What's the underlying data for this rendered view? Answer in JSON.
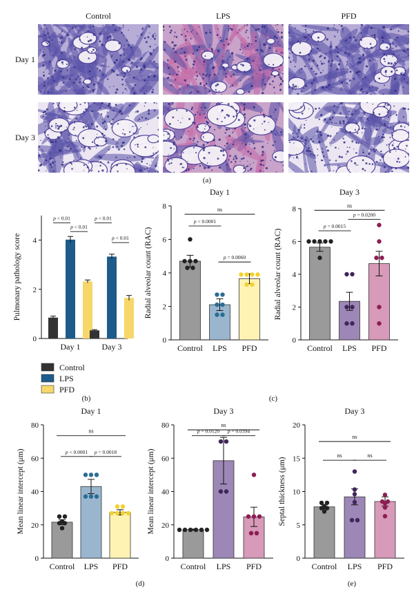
{
  "histology": {
    "columns": [
      "Control",
      "LPS",
      "PFD"
    ],
    "rows": [
      "Day 1",
      "Day 3"
    ],
    "panel_label": "(a)"
  },
  "panel_labels": {
    "b": "(b)",
    "c": "(c)",
    "d": "(d)",
    "e": "(e)"
  },
  "colors": {
    "bar_b_control": "#333333",
    "bar_b_lps": "#1c5b8a",
    "bar_b_pfd": "#f7d66a",
    "control_fill": "#9a9a9a",
    "lps_fill_d1": "#9ab6cf",
    "pfd_fill_d1": "#fff3b3",
    "lps_fill_d3": "#9d87b6",
    "pfd_fill_d3": "#d79ab8",
    "pt_control": "#222222",
    "pt_lps_d1": "#2a6d94",
    "pt_pfd_d1": "#f2d230",
    "pt_lps_d3": "#40265c",
    "pt_pfd_d3": "#8c1d52"
  },
  "chart_data": [
    {
      "id": "b",
      "type": "bar",
      "categories": [
        "Day 1",
        "Day 3"
      ],
      "series": [
        {
          "name": "Control",
          "values": [
            0.85,
            0.33
          ],
          "errors": [
            0.06,
            0.03
          ]
        },
        {
          "name": "LPS",
          "values": [
            4.02,
            3.33
          ],
          "errors": [
            0.13,
            0.1
          ]
        },
        {
          "name": "PFD",
          "values": [
            2.32,
            1.65
          ],
          "errors": [
            0.06,
            0.1
          ]
        }
      ],
      "ylabel": "Pulmonary pathology score",
      "ylim": [
        0,
        5
      ],
      "yticks": [
        0,
        2,
        4
      ],
      "annotations": [
        {
          "text": "p < 0.01",
          "category": "Day 1",
          "from": "Control",
          "to": "LPS",
          "level": 4.7
        },
        {
          "text": "p < 0.01",
          "category": "Day 1",
          "from": "LPS",
          "to": "PFD",
          "level": 4.35
        },
        {
          "text": "p < 0.01",
          "category": "Day 3",
          "from": "Control",
          "to": "LPS",
          "level": 4.7
        },
        {
          "text": "p < 0.01",
          "category": "Day 3",
          "from": "LPS",
          "to": "PFD",
          "level": 3.9
        }
      ],
      "legend": [
        "Control",
        "LPS",
        "PFD"
      ]
    },
    {
      "id": "c1",
      "type": "bar",
      "title": "Day 1",
      "categories": [
        "Control",
        "LPS",
        "PFD"
      ],
      "values": [
        4.7,
        2.1,
        3.65
      ],
      "errors": [
        0.35,
        0.35,
        0.3
      ],
      "points": [
        [
          6,
          4.3,
          4.3,
          4.7,
          4.7,
          4.7
        ],
        [
          2.7,
          2.7,
          2.1,
          2.1,
          1.5,
          1.5
        ],
        [
          3.3,
          3.3,
          3.9,
          3.9,
          3.9,
          3.9
        ]
      ],
      "ylabel": "Radial alveolar count (RAC)",
      "ylim": [
        0,
        8
      ],
      "yticks": [
        0,
        2,
        4,
        6,
        8
      ],
      "annotations": [
        {
          "text": "ns",
          "from": 0,
          "to": 2,
          "level": 7.5
        },
        {
          "text": "p < 0.0001",
          "from": 0,
          "to": 1,
          "level": 6.8
        },
        {
          "text": "p = 0.0060",
          "from": 1,
          "to": 2,
          "level": 4.65
        }
      ]
    },
    {
      "id": "c2",
      "type": "bar",
      "title": "Day 3",
      "categories": [
        "Control",
        "LPS",
        "PFD"
      ],
      "values": [
        5.65,
        2.35,
        4.65
      ],
      "errors": [
        0.25,
        0.55,
        0.75
      ],
      "points": [
        [
          5,
          6,
          6,
          6,
          6,
          6
        ],
        [
          4,
          4,
          2,
          2,
          1,
          1
        ],
        [
          7,
          6,
          5,
          5,
          2,
          1
        ]
      ],
      "ylabel": "Radial alveolar count (RAC)",
      "ylim": [
        0,
        8
      ],
      "yticks": [
        0,
        2,
        4,
        6,
        8
      ],
      "annotations": [
        {
          "text": "ns",
          "from": 0,
          "to": 2,
          "level": 7.9
        },
        {
          "text": "p = 0.0015",
          "from": 0,
          "to": 1,
          "level": 6.65
        },
        {
          "text": "p = 0.0200",
          "from": 1,
          "to": 2,
          "level": 7.35
        }
      ]
    },
    {
      "id": "d1",
      "type": "bar",
      "title": "Day 1",
      "categories": [
        "Control",
        "LPS",
        "PFD"
      ],
      "values": [
        21.6,
        43,
        27.5
      ],
      "errors": [
        1.5,
        4.3,
        1.6
      ],
      "points": [
        [
          25,
          25,
          22,
          21,
          21,
          18
        ],
        [
          50,
          50,
          50,
          37,
          37,
          37
        ],
        [
          31,
          31,
          27,
          27,
          27,
          27
        ]
      ],
      "ylabel": "Mean linear intercept (μm)",
      "ylim": [
        0,
        80
      ],
      "yticks": [
        0,
        20,
        40,
        60,
        80
      ],
      "annotations": [
        {
          "text": "ns",
          "from": 0,
          "to": 2,
          "level": 73.5
        },
        {
          "text": "p < 0.0001",
          "from": 0,
          "to": 1,
          "level": 61
        },
        {
          "text": "p = 0.0018",
          "from": 1,
          "to": 2,
          "level": 61
        }
      ]
    },
    {
      "id": "d2",
      "type": "bar",
      "title": "Day 3",
      "categories": [
        "Control",
        "LPS",
        "PFD"
      ],
      "values": [
        17.1,
        58.5,
        24.8
      ],
      "errors": [
        0.4,
        14,
        5.8
      ],
      "points": [
        [
          17,
          17,
          17,
          17,
          17,
          17
        ],
        [
          70,
          70,
          40,
          40
        ],
        [
          50,
          25,
          25,
          25,
          15,
          15
        ]
      ],
      "ylabel": "Mean linear intercept (μm)",
      "ylim": [
        0,
        80
      ],
      "yticks": [
        0,
        20,
        40,
        60,
        80
      ],
      "annotations": [
        {
          "text": "ns",
          "from": 0,
          "to": 2,
          "level": 77
        },
        {
          "text": "p = 0.0120",
          "from": 0,
          "to": 1,
          "level": 73.5
        },
        {
          "text": "p = 0.0394",
          "from": 1,
          "to": 2,
          "level": 73.5
        }
      ]
    },
    {
      "id": "e",
      "type": "bar",
      "title": "Day 3",
      "categories": [
        "Control",
        "LPS",
        "PFD"
      ],
      "values": [
        7.7,
        9.2,
        8.5
      ],
      "errors": [
        0.3,
        1.2,
        0.7
      ],
      "points": [
        [
          8.3,
          8.3,
          7.8,
          7.5,
          7.5,
          7.0
        ],
        [
          13,
          10.3,
          9.6,
          8.4,
          5.7,
          5.7
        ],
        [
          9.5,
          8.5,
          8.5,
          8.2,
          7.6,
          6.3
        ]
      ],
      "ylabel": "Septal thickness (μm)",
      "ylim": [
        0,
        20
      ],
      "yticks": [
        0,
        5,
        10,
        15,
        20
      ],
      "annotations": [
        {
          "text": "ns",
          "from": 0,
          "to": 2,
          "level": 17.5
        },
        {
          "text": "ns",
          "from": 0,
          "to": 1,
          "level": 14.7
        },
        {
          "text": "ns",
          "from": 1,
          "to": 2,
          "level": 14.7
        }
      ]
    }
  ]
}
